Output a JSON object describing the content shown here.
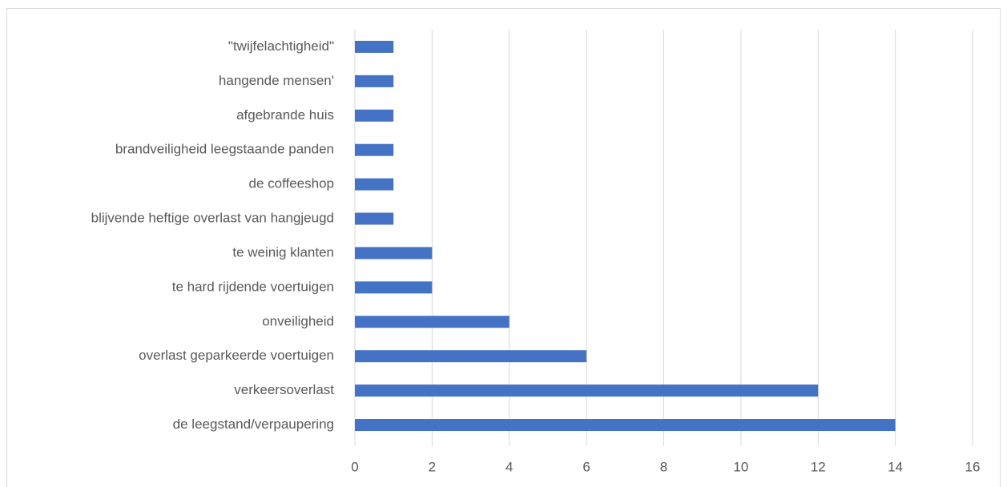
{
  "chart_data": {
    "type": "bar",
    "orientation": "horizontal",
    "categories": [
      "\"twijfelachtigheid\"",
      "hangende mensen'",
      "afgebrande huis",
      "brandveiligheid leegstaande panden",
      "de coffeeshop",
      "blijvende heftige overlast van hangjeugd",
      "te weinig klanten",
      "te hard rijdende voertuigen",
      "onveiligheid",
      "overlast geparkeerde voertuigen",
      "verkeersoverlast",
      "de leegstand/verpaupering"
    ],
    "values": [
      1,
      1,
      1,
      1,
      1,
      1,
      2,
      2,
      4,
      6,
      12,
      14
    ],
    "color": "#4472c4",
    "xlim": [
      0,
      16
    ],
    "xticks": [
      0,
      2,
      4,
      6,
      8,
      10,
      12,
      14,
      16
    ],
    "grid": true
  }
}
